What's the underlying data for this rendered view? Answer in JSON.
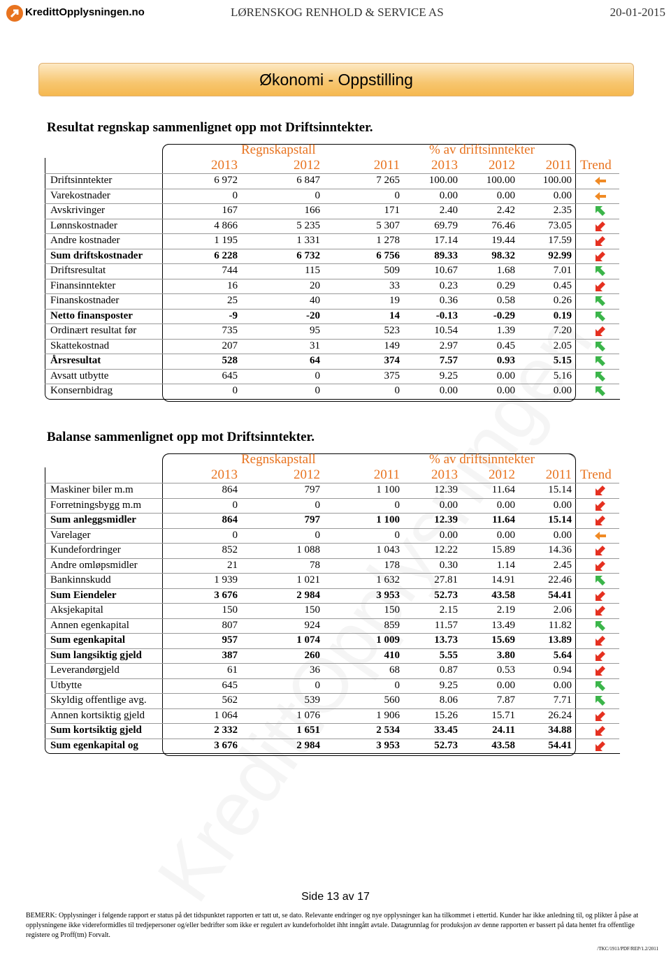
{
  "header": {
    "logo": "KredittOpplysningen.no",
    "company": "LØRENSKOG RENHOLD & SERVICE AS",
    "date": "20-01-2015"
  },
  "banner": "Økonomi - Oppstilling",
  "watermark": "KredittOpplysningen",
  "tables": [
    {
      "title": "Resultat regnskap sammenlignet opp mot Driftsinntekter.",
      "groups": [
        "Regnskapstall",
        "% av driftsinntekter"
      ],
      "columns": [
        "2013",
        "2012",
        "2011",
        "2013",
        "2012",
        "2011",
        "Trend"
      ],
      "rows": [
        [
          "Driftsinntekter",
          "6 972",
          "6 847",
          "7 265",
          "100.00",
          "100.00",
          "100.00"
        ],
        [
          "Varekostnader",
          "0",
          "0",
          "0",
          "0.00",
          "0.00",
          "0.00"
        ],
        [
          "Avskrivinger",
          "167",
          "166",
          "171",
          "2.40",
          "2.42",
          "2.35"
        ],
        [
          "Lønnskostnader",
          "4 866",
          "5 235",
          "5 307",
          "69.79",
          "76.46",
          "73.05"
        ],
        [
          "Andre kostnader",
          "1 195",
          "1 331",
          "1 278",
          "17.14",
          "19.44",
          "17.59"
        ],
        [
          "Sum driftskostnader",
          "6 228",
          "6 732",
          "6 756",
          "89.33",
          "98.32",
          "92.99"
        ],
        [
          "Driftsresultat",
          "744",
          "115",
          "509",
          "10.67",
          "1.68",
          "7.01"
        ],
        [
          "Finansinntekter",
          "16",
          "20",
          "33",
          "0.23",
          "0.29",
          "0.45"
        ],
        [
          "Finanskostnader",
          "25",
          "40",
          "19",
          "0.36",
          "0.58",
          "0.26"
        ],
        [
          "Netto finansposter",
          "-9",
          "-20",
          "14",
          "-0.13",
          "-0.29",
          "0.19"
        ],
        [
          "Ordinært resultat før",
          "735",
          "95",
          "523",
          "10.54",
          "1.39",
          "7.20"
        ],
        [
          "Skattekostnad",
          "207",
          "31",
          "149",
          "2.97",
          "0.45",
          "2.05"
        ],
        [
          "Årsresultat",
          "528",
          "64",
          "374",
          "7.57",
          "0.93",
          "5.15"
        ],
        [
          "Avsatt utbytte",
          "645",
          "0",
          "375",
          "9.25",
          "0.00",
          "5.16"
        ],
        [
          "Konsernbidrag",
          "0",
          "0",
          "0",
          "0.00",
          "0.00",
          "0.00"
        ]
      ]
    },
    {
      "title": "Balanse sammenlignet opp mot Driftsinntekter.",
      "groups": [
        "Regnskapstall",
        "% av driftsinntekter"
      ],
      "columns": [
        "2013",
        "2012",
        "2011",
        "2013",
        "2012",
        "2011",
        "Trend"
      ],
      "rows": [
        [
          "Maskiner biler m.m",
          "864",
          "797",
          "1 100",
          "12.39",
          "11.64",
          "15.14"
        ],
        [
          "Forretningsbygg m.m",
          "0",
          "0",
          "0",
          "0.00",
          "0.00",
          "0.00"
        ],
        [
          "Sum anleggsmidler",
          "864",
          "797",
          "1 100",
          "12.39",
          "11.64",
          "15.14"
        ],
        [
          "Varelager",
          "0",
          "0",
          "0",
          "0.00",
          "0.00",
          "0.00"
        ],
        [
          "Kundefordringer",
          "852",
          "1 088",
          "1 043",
          "12.22",
          "15.89",
          "14.36"
        ],
        [
          "Andre omløpsmidler",
          "21",
          "78",
          "178",
          "0.30",
          "1.14",
          "2.45"
        ],
        [
          "Bankinnskudd",
          "1 939",
          "1 021",
          "1 632",
          "27.81",
          "14.91",
          "22.46"
        ],
        [
          "Sum Eiendeler",
          "3 676",
          "2 984",
          "3 953",
          "52.73",
          "43.58",
          "54.41"
        ],
        [
          "Aksjekapital",
          "150",
          "150",
          "150",
          "2.15",
          "2.19",
          "2.06"
        ],
        [
          "Annen egenkapital",
          "807",
          "924",
          "859",
          "11.57",
          "13.49",
          "11.82"
        ],
        [
          "Sum egenkapital",
          "957",
          "1 074",
          "1 009",
          "13.73",
          "15.69",
          "13.89"
        ],
        [
          "Sum langsiktig gjeld",
          "387",
          "260",
          "410",
          "5.55",
          "3.80",
          "5.64"
        ],
        [
          "Leverandørgjeld",
          "61",
          "36",
          "68",
          "0.87",
          "0.53",
          "0.94"
        ],
        [
          "Utbytte",
          "645",
          "0",
          "0",
          "9.25",
          "0.00",
          "0.00"
        ],
        [
          "Skyldig offentlige avg.",
          "562",
          "539",
          "560",
          "8.06",
          "7.87",
          "7.71"
        ],
        [
          "Annen kortsiktig gjeld",
          "1 064",
          "1 076",
          "1 906",
          "15.26",
          "15.71",
          "26.24"
        ],
        [
          "Sum kortsiktig gjeld",
          "2 332",
          "1 651",
          "2 534",
          "33.45",
          "24.11",
          "34.88"
        ],
        [
          "Sum egenkapital og",
          "3 676",
          "2 984",
          "3 953",
          "52.73",
          "43.58",
          "54.41"
        ]
      ]
    }
  ],
  "footer": {
    "page": "Side 13 av 17",
    "note": "BEMERK: Opplysninger i følgende rapport er status på det tidspunktet rapporten er tatt ut, se dato. Relevante endringer og nye opplysninger kan ha tilkommet i ettertid. Kunder har ikke anledning til, og plikter å påse at opplysningene ikke videreformidles til tredjepersoner og/eller bedrifter som ikke er regulert av kundeforholdet ihht inngått avtale. Datagrunnlag for produksjon av denne rapporten er bassert på data hentet fra offentlige registere og Proff(tm) Forvalt.",
    "code": "/TKC/1911/PDF/REP/1.2/2011"
  }
}
